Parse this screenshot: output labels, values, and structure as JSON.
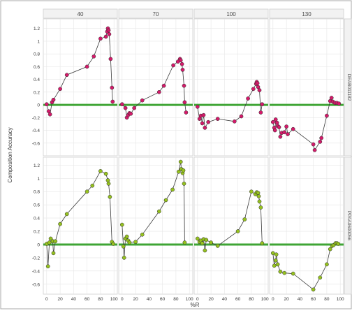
{
  "chart_data": {
    "type": "scatter",
    "ylabel": "Composition Accuracy",
    "xlabel": "%R",
    "xlim": [
      -5,
      105
    ],
    "x_ticks": [
      0,
      20,
      40,
      60,
      80,
      100
    ],
    "grid": true,
    "columns": [
      "40",
      "70",
      "100",
      "130"
    ],
    "rows": [
      {
        "label": "DEAB011182",
        "ylim": [
          -0.8,
          1.35
        ],
        "y_ticks": [
          -0.6,
          -0.4,
          -0.2,
          0,
          0.2,
          0.4,
          0.6,
          0.8,
          1,
          1.2
        ],
        "point_color": "#d41a6a",
        "panels": [
          {
            "column": "40",
            "points": [
              [
                0,
                0.01
              ],
              [
                3,
                -0.1
              ],
              [
                5,
                -0.15
              ],
              [
                8,
                0.04
              ],
              [
                10,
                0.08
              ],
              [
                20,
                0.25
              ],
              [
                30,
                0.47
              ],
              [
                60,
                0.6
              ],
              [
                70,
                0.76
              ],
              [
                80,
                1.04
              ],
              [
                88,
                1.07
              ],
              [
                90,
                1.15
              ],
              [
                91,
                1.2
              ],
              [
                92,
                1.17
              ],
              [
                93,
                1.11
              ],
              [
                95,
                0.72
              ],
              [
                97,
                0.27
              ],
              [
                98,
                0.05
              ]
            ]
          },
          {
            "column": "70",
            "points": [
              [
                0,
                0.01
              ],
              [
                5,
                -0.05
              ],
              [
                7,
                -0.2
              ],
              [
                9,
                -0.16
              ],
              [
                11,
                -0.13
              ],
              [
                13,
                -0.14
              ],
              [
                18,
                -0.05
              ],
              [
                30,
                0.07
              ],
              [
                55,
                0.2
              ],
              [
                62,
                0.3
              ],
              [
                76,
                0.62
              ],
              [
                83,
                0.68
              ],
              [
                86,
                0.72
              ],
              [
                87,
                0.7
              ],
              [
                89,
                0.64
              ],
              [
                90,
                0.55
              ],
              [
                92,
                0.3
              ],
              [
                93,
                0.04
              ],
              [
                95,
                -0.12
              ]
            ]
          },
          {
            "column": "100",
            "points": [
              [
                0,
                -0.03
              ],
              [
                3,
                -0.22
              ],
              [
                5,
                -0.17
              ],
              [
                7,
                -0.29
              ],
              [
                9,
                -0.16
              ],
              [
                11,
                -0.36
              ],
              [
                16,
                -0.27
              ],
              [
                30,
                -0.22
              ],
              [
                55,
                -0.26
              ],
              [
                65,
                -0.18
              ],
              [
                75,
                0.1
              ],
              [
                83,
                0.25
              ],
              [
                87,
                0.33
              ],
              [
                88,
                0.36
              ],
              [
                89,
                0.34
              ],
              [
                90,
                0.28
              ],
              [
                92,
                0.23
              ],
              [
                94,
                -0.12
              ],
              [
                96,
                0.01
              ]
            ]
          },
          {
            "column": "130",
            "points": [
              [
                0,
                -0.27
              ],
              [
                2,
                -0.36
              ],
              [
                3,
                -0.4
              ],
              [
                4,
                -0.23
              ],
              [
                6,
                -0.28
              ],
              [
                7,
                -0.33
              ],
              [
                9,
                -0.35
              ],
              [
                11,
                -0.5
              ],
              [
                13,
                -0.44
              ],
              [
                17,
                -0.43
              ],
              [
                20,
                -0.34
              ],
              [
                22,
                -0.46
              ],
              [
                30,
                -0.38
              ],
              [
                60,
                -0.62
              ],
              [
                62,
                -0.71
              ],
              [
                70,
                -0.58
              ],
              [
                72,
                -0.52
              ],
              [
                80,
                -0.17
              ],
              [
                85,
                0.06
              ],
              [
                87,
                0.11
              ],
              [
                89,
                0.05
              ],
              [
                92,
                0.03
              ],
              [
                95,
                0.03
              ],
              [
                98,
                0.02
              ]
            ]
          }
        ]
      },
      {
        "label": "PPAA0600056",
        "ylim": [
          -0.75,
          1.32
        ],
        "y_ticks": [
          -0.6,
          -0.4,
          -0.2,
          0,
          0.2,
          0.4,
          0.6,
          0.8,
          1,
          1.2
        ],
        "point_color": "#95c11f",
        "panels": [
          {
            "column": "40",
            "points": [
              [
                0,
                0.01
              ],
              [
                2,
                -0.33
              ],
              [
                4,
                0.03
              ],
              [
                6,
                0.09
              ],
              [
                9,
                0.05
              ],
              [
                10,
                -0.13
              ],
              [
                13,
                0.05
              ],
              [
                20,
                0.31
              ],
              [
                30,
                0.46
              ],
              [
                60,
                0.8
              ],
              [
                68,
                0.89
              ],
              [
                80,
                1.11
              ],
              [
                88,
                1.07
              ],
              [
                91,
                0.97
              ],
              [
                92,
                0.92
              ],
              [
                94,
                0.72
              ],
              [
                97,
                0.04
              ],
              [
                99,
                0.01
              ]
            ]
          },
          {
            "column": "70",
            "points": [
              [
                0,
                0.3
              ],
              [
                2,
                -0.03
              ],
              [
                3,
                -0.2
              ],
              [
                5,
                0.09
              ],
              [
                7,
                0.12
              ],
              [
                9,
                0.06
              ],
              [
                11,
                0.03
              ],
              [
                20,
                0.04
              ],
              [
                30,
                0.15
              ],
              [
                55,
                0.5
              ],
              [
                65,
                0.67
              ],
              [
                75,
                0.83
              ],
              [
                84,
                1.1
              ],
              [
                87,
                1.25
              ],
              [
                88,
                1.14
              ],
              [
                90,
                1.08
              ],
              [
                91,
                1.12
              ],
              [
                92,
                0.92
              ],
              [
                93,
                0.03
              ]
            ]
          },
          {
            "column": "100",
            "points": [
              [
                0,
                0.09
              ],
              [
                3,
                0.04
              ],
              [
                5,
                0.06
              ],
              [
                7,
                0.02
              ],
              [
                9,
                0.08
              ],
              [
                11,
                -0.09
              ],
              [
                13,
                0.07
              ],
              [
                20,
                0.03
              ],
              [
                30,
                -0.02
              ],
              [
                60,
                0.2
              ],
              [
                70,
                0.38
              ],
              [
                80,
                0.8
              ],
              [
                86,
                0.76
              ],
              [
                88,
                0.79
              ],
              [
                90,
                0.78
              ],
              [
                91,
                0.73
              ],
              [
                92,
                0.65
              ],
              [
                94,
                0.56
              ],
              [
                96,
                0.02
              ]
            ]
          },
          {
            "column": "130",
            "points": [
              [
                0,
                -0.13
              ],
              [
                2,
                -0.32
              ],
              [
                4,
                -0.24
              ],
              [
                5,
                -0.15
              ],
              [
                7,
                -0.3
              ],
              [
                11,
                -0.41
              ],
              [
                17,
                -0.43
              ],
              [
                30,
                -0.44
              ],
              [
                60,
                -0.68
              ],
              [
                70,
                -0.5
              ],
              [
                80,
                -0.3
              ],
              [
                85,
                -0.07
              ],
              [
                88,
                -0.02
              ],
              [
                90,
                -0.01
              ],
              [
                93,
                0.02
              ],
              [
                95,
                0.02
              ],
              [
                97,
                0.01
              ]
            ]
          }
        ]
      }
    ]
  }
}
